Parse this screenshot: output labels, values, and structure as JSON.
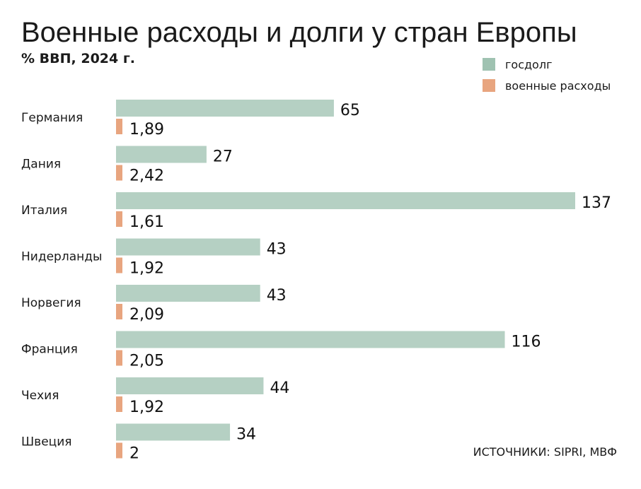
{
  "title": "Военные расходы и долги у стран Европы",
  "subtitle": "% ВВП, 2024 г.",
  "source": "ИСТОЧНИКИ: SIPRI, МВФ",
  "colors": {
    "debt": "#b5d0c3",
    "military": "#e8a57f"
  },
  "legend": [
    {
      "label": "госдолг",
      "color": "#9fc2b1"
    },
    {
      "label": "военные расходы",
      "color": "#e8a57f"
    }
  ],
  "chart_data": {
    "type": "bar",
    "orientation": "horizontal",
    "categories": [
      "Германия",
      "Дания",
      "Италия",
      "Нидерланды",
      "Норвегия",
      "Франция",
      "Чехия",
      "Швеция"
    ],
    "series": [
      {
        "name": "госдолг",
        "values": [
          65,
          27,
          137,
          43,
          43,
          116,
          44,
          34
        ],
        "labels": [
          "65",
          "27",
          "137",
          "43",
          "43",
          "116",
          "44",
          "34"
        ]
      },
      {
        "name": "военные расходы",
        "values": [
          1.89,
          2.42,
          1.61,
          1.92,
          2.09,
          2.05,
          1.92,
          2
        ],
        "labels": [
          "1,89",
          "2,42",
          "1,61",
          "1,92",
          "2,09",
          "2,05",
          "1,92",
          "2"
        ]
      }
    ],
    "title": "Военные расходы и долги у стран Европы",
    "ylabel": "% ВВП, 2024 г.",
    "legend_position": "top-right",
    "grid": false
  }
}
